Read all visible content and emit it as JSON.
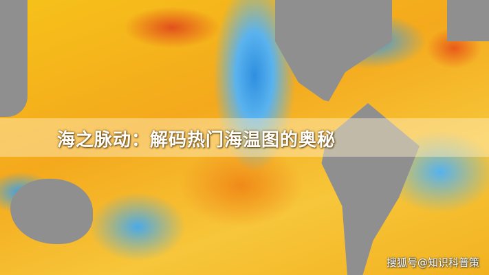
{
  "title": "海之脉动：解码热门海温图的奥秘",
  "watermark": "搜狐号@知识科普策",
  "colors": {
    "warm": "#f6c21a",
    "hot": "#e2501c",
    "cool": "#2f8fe0",
    "land": "#8f8f8f"
  }
}
